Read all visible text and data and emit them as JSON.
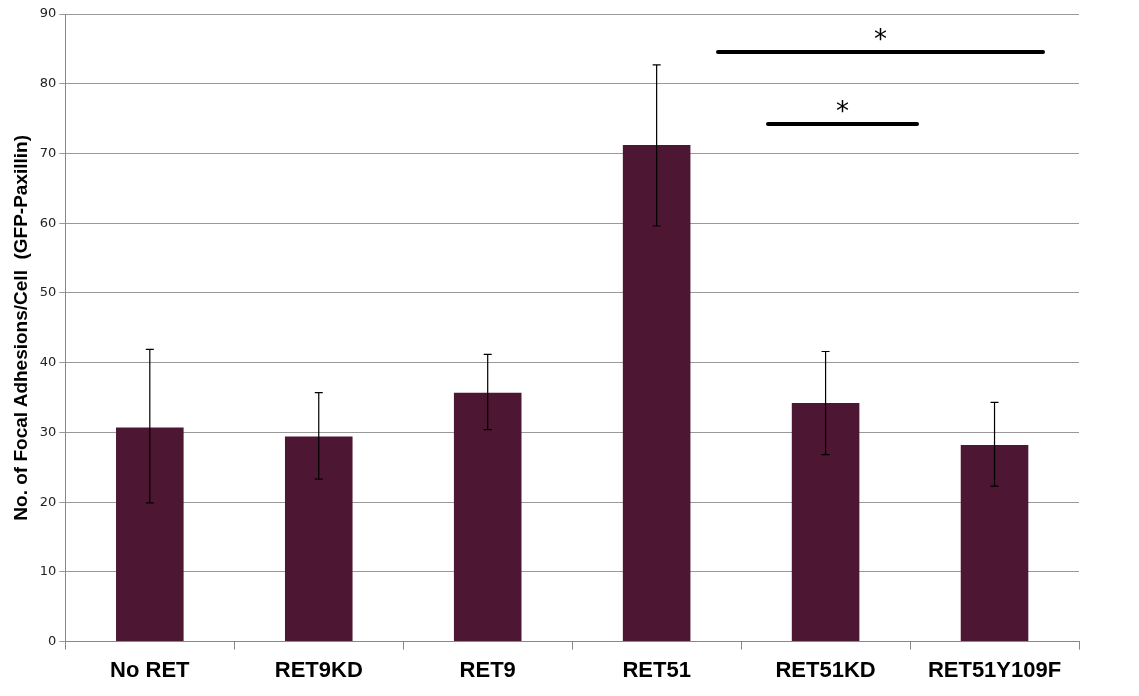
{
  "chart_data": {
    "type": "bar",
    "ylabel": "No. of Focal Adhesions/Cell  (GFP-Paxillin)",
    "categories": [
      "No RET",
      "RET9KD",
      "RET9",
      "RET51",
      "RET51KD",
      "RET51Y109F"
    ],
    "values": [
      30.7,
      29.4,
      35.7,
      71.2,
      34.2,
      28.2
    ],
    "errors": [
      [
        19.9,
        41.9
      ],
      [
        23.3,
        35.7
      ],
      [
        30.4,
        41.2
      ],
      [
        59.6,
        82.7
      ],
      [
        26.8,
        41.6
      ],
      [
        22.3,
        34.3
      ]
    ],
    "color": "#4d1632",
    "ylim": [
      0,
      90
    ],
    "yticks": [
      0,
      10,
      20,
      30,
      40,
      50,
      60,
      70,
      80,
      90
    ],
    "grid": "y",
    "legend": false,
    "annotations": [
      "*",
      "*"
    ]
  }
}
